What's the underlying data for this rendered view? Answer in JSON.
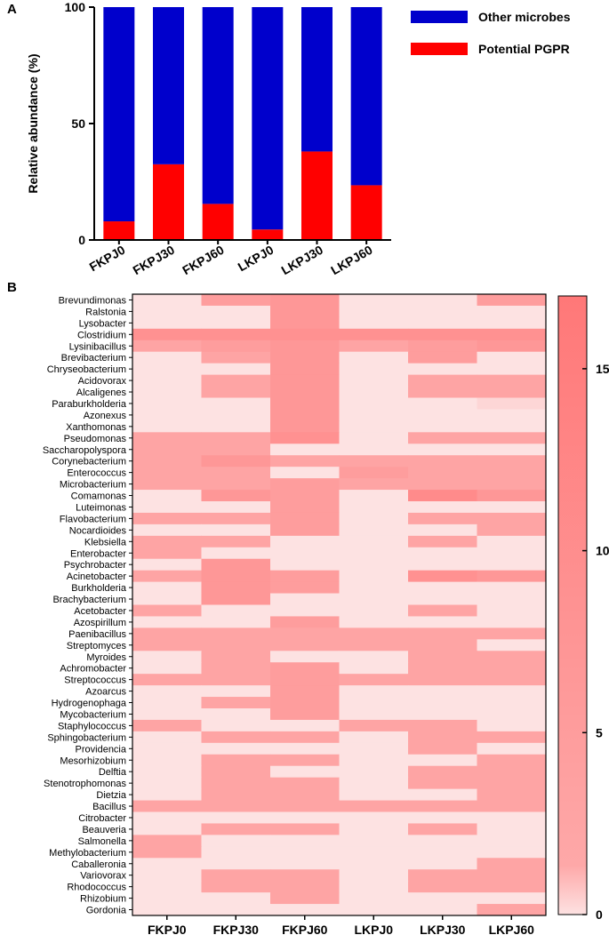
{
  "chart_data": [
    {
      "panel": "A",
      "type": "bar",
      "stacked": true,
      "categories": [
        "FKPJ0",
        "FKPJ30",
        "FKPJ60",
        "LKPJ0",
        "LKPJ30",
        "LKPJ60"
      ],
      "series": [
        {
          "name": "Potential PGPR",
          "color": "#ff0000",
          "values": [
            8,
            32.5,
            15.5,
            4.5,
            38,
            23.5
          ]
        },
        {
          "name": "Other microbes",
          "color": "#0000cc",
          "values": [
            92,
            67.5,
            84.5,
            95.5,
            62,
            76.5
          ]
        }
      ],
      "ylabel": "Relative abundance (%)",
      "ylim": [
        0,
        100
      ],
      "yticks": [
        "0",
        "50",
        "100"
      ],
      "legend_order": [
        "Other microbes",
        "Potential PGPR"
      ],
      "legend_position": "top-right"
    },
    {
      "panel": "B",
      "type": "heatmap",
      "columns": [
        "FKPJ0",
        "FKPJ30",
        "FKPJ60",
        "LKPJ0",
        "LKPJ30",
        "LKPJ60"
      ],
      "rows": [
        "Brevundimonas",
        "Ralstonia",
        "Lysobacter",
        "Clostridium",
        "Lysinibacillus",
        "Brevibacterium",
        "Chryseobacterium",
        "Acidovorax",
        "Alcaligenes",
        "Paraburkholderia",
        "Azonexus",
        "Xanthomonas",
        "Pseudomonas",
        "Saccharopolyspora",
        "Corynebacterium",
        "Enterococcus",
        "Microbacterium",
        "Comamonas",
        "Luteimonas",
        "Flavobacterium",
        "Nocardioides",
        "Klebsiella",
        "Enterobacter",
        "Psychrobacter",
        "Acinetobacter",
        "Burkholderia",
        "Brachybacterium",
        "Acetobacter",
        "Azospirillum",
        "Paenibacillus",
        "Streptomyces",
        "Myroides",
        "Achromobacter",
        "Streptococcus",
        "Azoarcus",
        "Hydrogenophaga",
        "Mycobacterium",
        "Staphylococcus",
        "Sphingobacterium",
        "Providencia",
        "Mesorhizobium",
        "Delftia",
        "Stenotrophomonas",
        "Dietzia",
        "Bacillus",
        "Citrobacter",
        "Beauveria",
        "Salmonella",
        "Methylobacterium",
        "Caballeronia",
        "Variovorax",
        "Rhodococcus",
        "Rhizobium",
        "Gordonia"
      ],
      "values": [
        [
          0,
          11,
          12,
          0,
          0,
          11
        ],
        [
          0,
          0,
          12,
          0,
          0,
          0
        ],
        [
          0,
          0,
          12,
          0,
          0,
          0
        ],
        [
          13,
          13,
          13,
          13,
          13,
          13
        ],
        [
          10,
          11,
          12,
          10,
          11,
          12
        ],
        [
          0,
          10,
          12,
          0,
          11,
          0
        ],
        [
          0,
          0,
          12,
          0,
          0,
          0
        ],
        [
          0,
          10,
          12,
          0,
          10,
          10
        ],
        [
          0,
          10,
          12,
          0,
          10,
          10
        ],
        [
          0,
          0,
          12,
          0,
          0,
          2
        ],
        [
          0,
          0,
          12,
          0,
          0,
          0
        ],
        [
          0,
          0,
          12,
          0,
          0,
          0
        ],
        [
          10,
          10,
          13,
          0,
          10,
          10
        ],
        [
          10,
          10,
          0,
          0,
          0,
          0
        ],
        [
          10,
          12,
          10,
          10,
          10,
          10
        ],
        [
          10,
          10,
          0,
          11,
          10,
          10
        ],
        [
          10,
          10,
          11,
          10,
          10,
          10
        ],
        [
          0,
          12,
          11,
          0,
          14,
          12
        ],
        [
          0,
          0,
          11,
          0,
          0,
          0
        ],
        [
          10,
          10,
          11,
          0,
          10,
          10
        ],
        [
          0,
          0,
          11,
          0,
          0,
          10
        ],
        [
          10,
          10,
          0,
          0,
          10,
          0
        ],
        [
          10,
          0,
          0,
          0,
          0,
          0
        ],
        [
          0,
          12,
          0,
          0,
          0,
          0
        ],
        [
          10,
          12,
          11,
          0,
          13,
          12
        ],
        [
          0,
          12,
          11,
          0,
          0,
          0
        ],
        [
          0,
          12,
          0,
          0,
          0,
          0
        ],
        [
          10,
          0,
          0,
          0,
          10,
          0
        ],
        [
          0,
          0,
          11,
          0,
          0,
          0
        ],
        [
          10,
          10,
          10,
          10,
          10,
          10
        ],
        [
          10,
          10,
          10,
          10,
          10,
          0
        ],
        [
          0,
          10,
          0,
          0,
          10,
          10
        ],
        [
          0,
          10,
          11,
          0,
          10,
          10
        ],
        [
          10,
          10,
          11,
          10,
          10,
          10
        ],
        [
          0,
          0,
          11,
          0,
          0,
          0
        ],
        [
          0,
          10,
          11,
          0,
          0,
          0
        ],
        [
          0,
          0,
          11,
          0,
          0,
          0
        ],
        [
          10,
          0,
          0,
          10,
          10,
          0
        ],
        [
          0,
          10,
          10,
          0,
          10,
          10
        ],
        [
          0,
          0,
          0,
          0,
          10,
          0
        ],
        [
          0,
          10,
          10,
          0,
          0,
          10
        ],
        [
          0,
          10,
          0,
          0,
          10,
          10
        ],
        [
          0,
          10,
          10,
          0,
          10,
          10
        ],
        [
          0,
          10,
          10,
          0,
          0,
          10
        ],
        [
          10,
          10,
          10,
          10,
          10,
          10
        ],
        [
          0,
          0,
          0,
          0,
          0,
          0
        ],
        [
          0,
          10,
          10,
          0,
          10,
          0
        ],
        [
          10,
          0,
          0,
          0,
          0,
          0
        ],
        [
          10,
          0,
          0,
          0,
          0,
          0
        ],
        [
          0,
          0,
          0,
          0,
          0,
          10
        ],
        [
          0,
          10,
          10,
          0,
          10,
          10
        ],
        [
          0,
          10,
          10,
          0,
          10,
          10
        ],
        [
          0,
          0,
          10,
          0,
          0,
          0
        ],
        [
          0,
          0,
          0,
          0,
          0,
          10
        ]
      ],
      "colorbar": {
        "min": 0,
        "max": 17,
        "ticks": [
          0,
          5,
          10,
          15
        ],
        "low_color": "#fde2e2",
        "high_color": "#ff7878"
      }
    }
  ]
}
